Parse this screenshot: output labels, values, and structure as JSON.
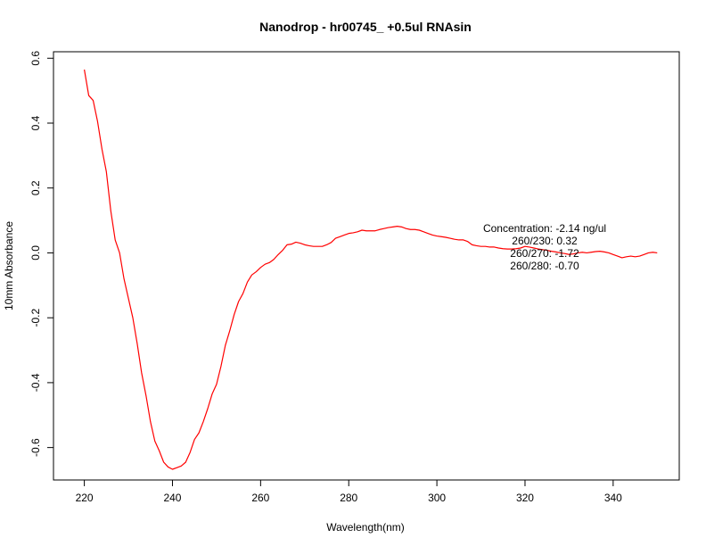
{
  "chart_data": {
    "type": "line",
    "title": "Nanodrop - hr00745_ +0.5ul RNAsin",
    "xlabel": "Wavelength(nm)",
    "ylabel": "10mm Absorbance",
    "xlim": [
      213,
      355
    ],
    "ylim": [
      -0.7,
      0.62
    ],
    "x_ticks": [
      220,
      240,
      260,
      280,
      300,
      320,
      340
    ],
    "y_ticks": [
      -0.6,
      -0.4,
      -0.2,
      0.0,
      0.2,
      0.4,
      0.6
    ],
    "x_tick_labels": [
      "220",
      "240",
      "260",
      "280",
      "300",
      "320",
      "340"
    ],
    "y_tick_labels": [
      "-0.6",
      "-0.4",
      "-0.2",
      "0.0",
      "0.2",
      "0.4",
      "0.6"
    ],
    "grid": false,
    "series_color": "#ff0000",
    "series": [
      {
        "name": "",
        "x": [
          220,
          221,
          222,
          223,
          224,
          225,
          226,
          227,
          228,
          229,
          230,
          231,
          232,
          233,
          234,
          235,
          236,
          237,
          238,
          239,
          240,
          241,
          242,
          243,
          244,
          245,
          246,
          247,
          248,
          249,
          250,
          251,
          252,
          253,
          254,
          255,
          256,
          257,
          258,
          259,
          260,
          261,
          262,
          263,
          264,
          265,
          266,
          267,
          268,
          269,
          270,
          271,
          272,
          273,
          274,
          275,
          276,
          277,
          278,
          279,
          280,
          281,
          282,
          283,
          284,
          285,
          286,
          287,
          288,
          289,
          290,
          291,
          292,
          293,
          294,
          295,
          296,
          297,
          298,
          299,
          300,
          301,
          302,
          303,
          304,
          305,
          306,
          307,
          308,
          309,
          310,
          311,
          312,
          313,
          314,
          315,
          316,
          317,
          318,
          319,
          320,
          321,
          322,
          323,
          324,
          325,
          326,
          327,
          328,
          329,
          330,
          331,
          332,
          333,
          334,
          335,
          336,
          337,
          338,
          339,
          340,
          341,
          342,
          343,
          344,
          345,
          346,
          347,
          348,
          349,
          350
        ],
        "y": [
          0.565,
          0.485,
          0.47,
          0.405,
          0.32,
          0.25,
          0.13,
          0.04,
          0.0,
          -0.08,
          -0.14,
          -0.2,
          -0.28,
          -0.37,
          -0.44,
          -0.52,
          -0.58,
          -0.61,
          -0.645,
          -0.66,
          -0.667,
          -0.662,
          -0.657,
          -0.645,
          -0.615,
          -0.575,
          -0.555,
          -0.52,
          -0.48,
          -0.435,
          -0.405,
          -0.35,
          -0.285,
          -0.24,
          -0.19,
          -0.15,
          -0.125,
          -0.09,
          -0.068,
          -0.058,
          -0.045,
          -0.035,
          -0.03,
          -0.02,
          -0.005,
          0.008,
          0.025,
          0.027,
          0.033,
          0.03,
          0.025,
          0.022,
          0.02,
          0.02,
          0.02,
          0.025,
          0.032,
          0.045,
          0.05,
          0.055,
          0.06,
          0.062,
          0.065,
          0.07,
          0.068,
          0.068,
          0.068,
          0.072,
          0.075,
          0.078,
          0.08,
          0.082,
          0.08,
          0.075,
          0.072,
          0.072,
          0.07,
          0.065,
          0.06,
          0.055,
          0.052,
          0.05,
          0.048,
          0.045,
          0.042,
          0.04,
          0.04,
          0.035,
          0.025,
          0.022,
          0.02,
          0.02,
          0.018,
          0.018,
          0.015,
          0.013,
          0.012,
          0.012,
          0.013,
          0.015,
          0.02,
          0.018,
          0.015,
          0.012,
          0.01,
          0.008,
          0.005,
          0.003,
          0.0,
          -0.002,
          -0.005,
          -0.003,
          0.0,
          0.002,
          0.0,
          0.002,
          0.004,
          0.005,
          0.003,
          0.0,
          -0.005,
          -0.01,
          -0.015,
          -0.012,
          -0.01,
          -0.012,
          -0.01,
          -0.005,
          0.0,
          0.002,
          0.0
        ]
      }
    ],
    "annotations": [
      "Concentration: -2.14 ng/ul",
      "260/230: 0.32",
      "260/270: -1.72",
      "260/280: -0.70"
    ]
  }
}
